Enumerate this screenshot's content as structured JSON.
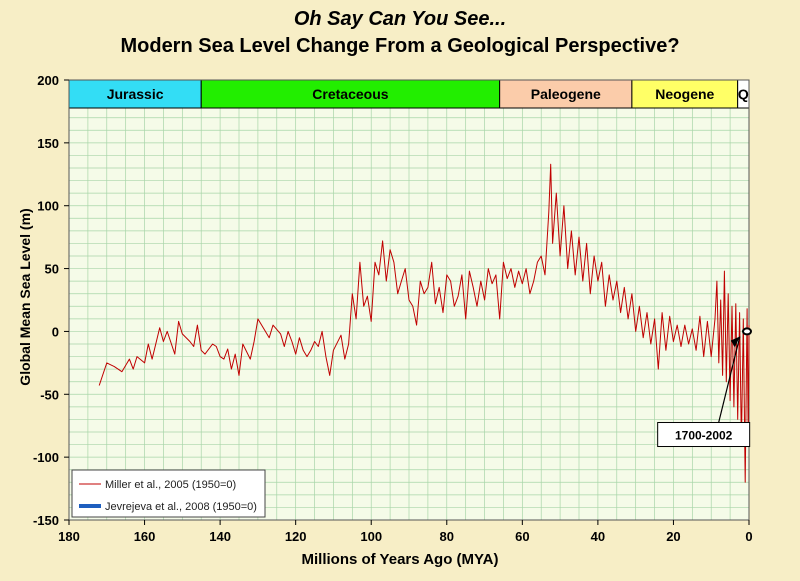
{
  "chart_data": {
    "type": "line",
    "title": "Oh Say Can You See...",
    "subtitle": "Modern Sea Level Change From a Geological Perspective?",
    "xlabel": "Millions of Years Ago (MYA)",
    "ylabel": "Global Mean Sea Level (m)",
    "xlim": [
      180,
      0
    ],
    "ylim": [
      -150,
      200
    ],
    "x_ticks": [
      180,
      160,
      140,
      120,
      100,
      80,
      60,
      40,
      20,
      0
    ],
    "y_ticks": [
      200,
      150,
      100,
      50,
      0,
      -50,
      -100,
      -150
    ],
    "grid": true,
    "periods": [
      {
        "name": "Jurassic",
        "start": 180,
        "end": 145,
        "color": "#33ddf5"
      },
      {
        "name": "Cretaceous",
        "start": 145,
        "end": 66,
        "color": "#22ee00"
      },
      {
        "name": "Paleogene",
        "start": 66,
        "end": 31,
        "color": "#fbccaa"
      },
      {
        "name": "Neogene",
        "start": 31,
        "end": 3,
        "color": "#ffff66"
      },
      {
        "name": "Q",
        "start": 3,
        "end": 0,
        "color": "#ffffff"
      }
    ],
    "series": [
      {
        "name": "Miller et al., 2005 (1950=0)",
        "color": "#c00000",
        "x": [
          172,
          170,
          168,
          166,
          164,
          163,
          162,
          160,
          159,
          158,
          156,
          155,
          154,
          152,
          151,
          150,
          148,
          147,
          146,
          145,
          144,
          142,
          141,
          140,
          139,
          138,
          137,
          136,
          135,
          134,
          132,
          131,
          130,
          128,
          127,
          126,
          124,
          123,
          122,
          121,
          120,
          119,
          118,
          117,
          116,
          115,
          114,
          113,
          112,
          111,
          110,
          108,
          107,
          106,
          105,
          104,
          103,
          102,
          101,
          100,
          99,
          98,
          97,
          96,
          95,
          94,
          93,
          92,
          91,
          90,
          89,
          88,
          87,
          86,
          85,
          84,
          83,
          82,
          81,
          80,
          79,
          78,
          77,
          76,
          75,
          74,
          73,
          72,
          71,
          70,
          69,
          68,
          67,
          66,
          65,
          64,
          63,
          62,
          61,
          60,
          59,
          58,
          57,
          56,
          55,
          54,
          53,
          52.5,
          52,
          51,
          50,
          49,
          48,
          47,
          46,
          45,
          44,
          43,
          42,
          41,
          40,
          39,
          38,
          37,
          36,
          35,
          34,
          33,
          32,
          31,
          30,
          29,
          28,
          27,
          26,
          25,
          24,
          23,
          22,
          21,
          20,
          19,
          18,
          17,
          16,
          15,
          14,
          13,
          12,
          11,
          10,
          9,
          8.5,
          8,
          7.5,
          7,
          6.5,
          6,
          5.5,
          5,
          4.5,
          4,
          3.5,
          3,
          2.5,
          2,
          1.5,
          1,
          0.5,
          0.2,
          0
        ],
        "values": [
          -43,
          -25,
          -28,
          -32,
          -22,
          -30,
          -20,
          -25,
          -10,
          -22,
          3,
          -8,
          0,
          -18,
          8,
          -2,
          -8,
          -12,
          5,
          -15,
          -18,
          -10,
          -12,
          -20,
          -22,
          -14,
          -30,
          -18,
          -35,
          -10,
          -22,
          -8,
          10,
          0,
          -5,
          5,
          -2,
          -12,
          0,
          -8,
          -18,
          -5,
          -15,
          -20,
          -15,
          -8,
          -12,
          0,
          -20,
          -35,
          -15,
          -3,
          -22,
          -10,
          30,
          10,
          55,
          20,
          28,
          8,
          55,
          45,
          72,
          40,
          65,
          55,
          30,
          40,
          50,
          25,
          20,
          5,
          40,
          30,
          35,
          55,
          22,
          35,
          15,
          45,
          40,
          20,
          28,
          45,
          10,
          48,
          35,
          20,
          40,
          25,
          50,
          38,
          45,
          10,
          55,
          42,
          50,
          35,
          48,
          38,
          50,
          30,
          40,
          55,
          60,
          45,
          95,
          133,
          70,
          110,
          60,
          100,
          50,
          80,
          45,
          75,
          40,
          70,
          30,
          60,
          40,
          55,
          20,
          45,
          25,
          40,
          15,
          35,
          10,
          30,
          0,
          20,
          -5,
          15,
          -10,
          10,
          -30,
          15,
          -15,
          12,
          -8,
          5,
          -12,
          5,
          -10,
          2,
          -15,
          12,
          -20,
          8,
          -20,
          10,
          40,
          -25,
          25,
          -35,
          48,
          -40,
          30,
          -55,
          20,
          -60,
          22,
          -70,
          15,
          -90,
          10,
          -120,
          18,
          -85,
          5
        ]
      },
      {
        "name": "Jevrejeva et al., 2008 (1950=0)",
        "color": "#1e5fbf",
        "x": [
          0.0003,
          5e-05
        ],
        "values": [
          0,
          0
        ]
      }
    ],
    "annotations": [
      {
        "text": "1700-2002",
        "x": 12,
        "y": -82,
        "target_x": 0.3,
        "target_y": -4
      }
    ],
    "legend": "bottom-left"
  }
}
